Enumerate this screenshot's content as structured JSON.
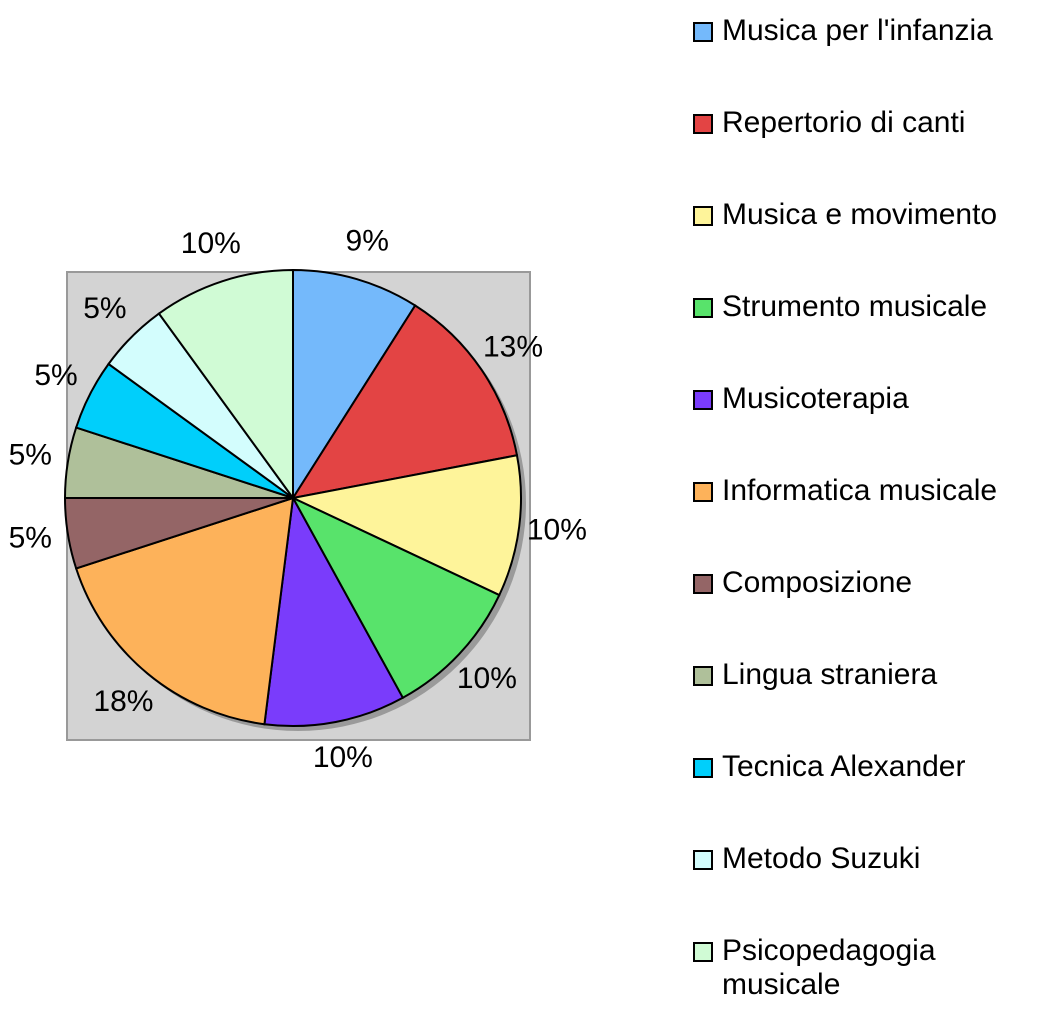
{
  "chart_data": {
    "type": "pie",
    "categories": [
      "Musica per l'infanzia",
      "Repertorio di canti",
      "Musica e movimento",
      "Strumento musicale",
      "Musicoterapia",
      "Informatica musicale",
      "Composizione",
      "Lingua straniera",
      "Tecnica Alexander",
      "Metodo Suzuki",
      "Psicopedagogia musicale"
    ],
    "values": [
      9,
      13,
      10,
      10,
      10,
      18,
      5,
      5,
      5,
      5,
      10
    ],
    "value_labels": [
      "9%",
      "13%",
      "10%",
      "10%",
      "10%",
      "18%",
      "5%",
      "5%",
      "5%",
      "5%",
      "10%"
    ],
    "colors": [
      "#74b9fb",
      "#e34444",
      "#fef49a",
      "#58e36b",
      "#7a3cfb",
      "#fdb25a",
      "#946566",
      "#afc09a",
      "#00cffb",
      "#d3fdfd",
      "#d0fbd5"
    ],
    "legend": "right"
  }
}
